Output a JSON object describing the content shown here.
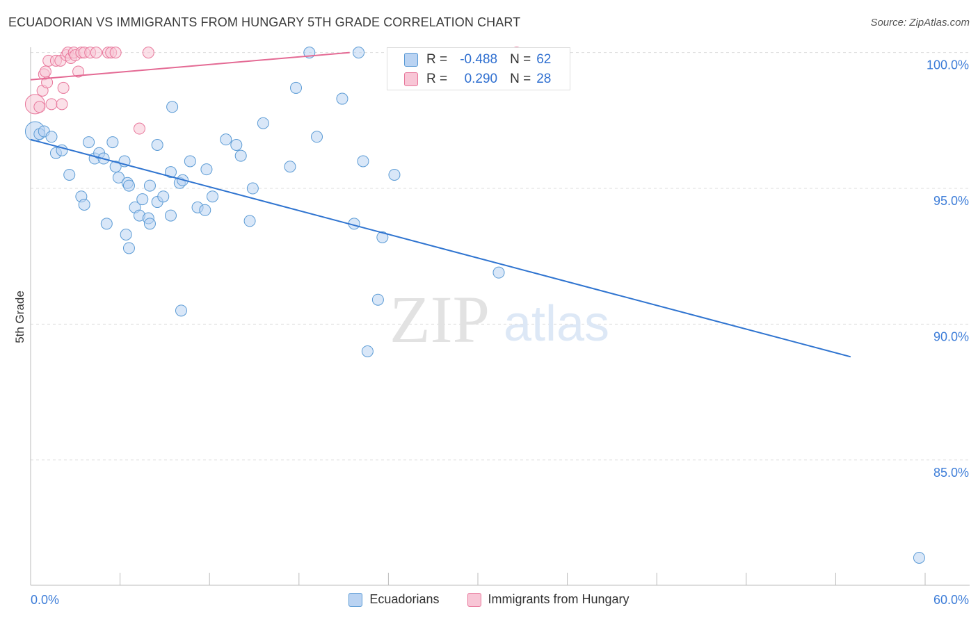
{
  "title": "ECUADORIAN VS IMMIGRANTS FROM HUNGARY 5TH GRADE CORRELATION CHART",
  "source": "Source: ZipAtlas.com",
  "watermark": {
    "zip": "ZIP",
    "atlas": "atlas"
  },
  "colors": {
    "blue": "#5b9bd5",
    "blue_fill": "#bad3f2",
    "blue_line": "#2f74d0",
    "pink": "#e8779b",
    "pink_fill": "#f8c6d6",
    "pink_line": "#e46a94",
    "axis_text": "#3d7dd8",
    "grid": "#dddddd"
  },
  "stats": {
    "r_label": "R =",
    "n_label": "N =",
    "series": [
      {
        "r": "-0.488",
        "n": "62"
      },
      {
        "r": "0.290",
        "n": "28"
      }
    ]
  },
  "legend": [
    "Ecuadorians",
    "Immigrants from Hungary"
  ],
  "chart_data": {
    "type": "scatter",
    "title": "ECUADORIAN VS IMMIGRANTS FROM HUNGARY 5TH GRADE CORRELATION CHART",
    "xlabel": "",
    "ylabel": "5th Grade",
    "xlim": [
      0,
      60
    ],
    "ylim": [
      80.9,
      100.4
    ],
    "x_tick_labels": [
      "0.0%",
      "60.0%"
    ],
    "y_ticks": [
      100,
      95,
      90,
      85
    ],
    "y_tick_labels": [
      "100.0%",
      "95.0%",
      "90.0%",
      "85.0%"
    ],
    "series": [
      {
        "name": "Ecuadorians",
        "trend": {
          "x": [
            0,
            55
          ],
          "y": [
            96.8,
            88.8
          ]
        },
        "points": [
          [
            0.3,
            97.1
          ],
          [
            0.6,
            97.0
          ],
          [
            0.9,
            97.1
          ],
          [
            1.4,
            96.9
          ],
          [
            1.7,
            96.3
          ],
          [
            2.1,
            96.4
          ],
          [
            2.6,
            95.5
          ],
          [
            3.4,
            94.7
          ],
          [
            3.6,
            94.4
          ],
          [
            3.9,
            96.7
          ],
          [
            4.3,
            96.1
          ],
          [
            4.6,
            96.3
          ],
          [
            4.9,
            96.1
          ],
          [
            5.1,
            93.7
          ],
          [
            5.5,
            96.7
          ],
          [
            5.7,
            95.8
          ],
          [
            5.9,
            95.4
          ],
          [
            6.3,
            96.0
          ],
          [
            6.5,
            95.2
          ],
          [
            6.4,
            93.3
          ],
          [
            6.6,
            92.8
          ],
          [
            6.6,
            95.1
          ],
          [
            7.0,
            94.3
          ],
          [
            7.3,
            94.0
          ],
          [
            7.5,
            94.6
          ],
          [
            7.9,
            93.9
          ],
          [
            8.0,
            95.1
          ],
          [
            8.0,
            93.7
          ],
          [
            8.5,
            96.6
          ],
          [
            8.5,
            94.5
          ],
          [
            8.9,
            94.7
          ],
          [
            9.4,
            94.0
          ],
          [
            9.4,
            95.6
          ],
          [
            9.5,
            98.0
          ],
          [
            10.0,
            95.2
          ],
          [
            10.1,
            90.5
          ],
          [
            10.2,
            95.3
          ],
          [
            10.7,
            96.0
          ],
          [
            11.2,
            94.3
          ],
          [
            11.7,
            94.2
          ],
          [
            11.8,
            95.7
          ],
          [
            12.2,
            94.7
          ],
          [
            13.1,
            96.8
          ],
          [
            13.8,
            96.6
          ],
          [
            14.1,
            96.2
          ],
          [
            14.7,
            93.8
          ],
          [
            14.9,
            95.0
          ],
          [
            15.6,
            97.4
          ],
          [
            17.4,
            95.8
          ],
          [
            17.8,
            98.7
          ],
          [
            18.7,
            100.0
          ],
          [
            19.2,
            96.9
          ],
          [
            20.9,
            98.3
          ],
          [
            21.7,
            93.7
          ],
          [
            22.0,
            100.0
          ],
          [
            22.3,
            96.0
          ],
          [
            22.6,
            89.0
          ],
          [
            23.3,
            90.9
          ],
          [
            23.6,
            93.2
          ],
          [
            24.4,
            95.5
          ],
          [
            31.4,
            91.9
          ],
          [
            59.6,
            81.4
          ]
        ]
      },
      {
        "name": "Immigrants from Hungary",
        "trend": {
          "x": [
            0,
            21.4
          ],
          "y": [
            99.0,
            100.0
          ]
        },
        "points": [
          [
            0.3,
            98.1
          ],
          [
            0.6,
            98.0
          ],
          [
            0.8,
            98.6
          ],
          [
            0.9,
            99.2
          ],
          [
            1.0,
            99.3
          ],
          [
            1.1,
            98.9
          ],
          [
            1.2,
            99.7
          ],
          [
            1.4,
            98.1
          ],
          [
            1.7,
            99.7
          ],
          [
            2.0,
            99.7
          ],
          [
            2.1,
            98.1
          ],
          [
            2.2,
            98.7
          ],
          [
            2.4,
            99.9
          ],
          [
            2.5,
            100.0
          ],
          [
            2.7,
            99.8
          ],
          [
            2.9,
            100.0
          ],
          [
            3.0,
            99.9
          ],
          [
            3.2,
            99.3
          ],
          [
            3.4,
            100.0
          ],
          [
            3.6,
            100.0
          ],
          [
            4.0,
            100.0
          ],
          [
            4.4,
            100.0
          ],
          [
            5.2,
            100.0
          ],
          [
            5.4,
            100.0
          ],
          [
            5.7,
            100.0
          ],
          [
            7.3,
            97.2
          ],
          [
            7.9,
            100.0
          ],
          [
            32.6,
            100.0
          ]
        ]
      }
    ]
  }
}
